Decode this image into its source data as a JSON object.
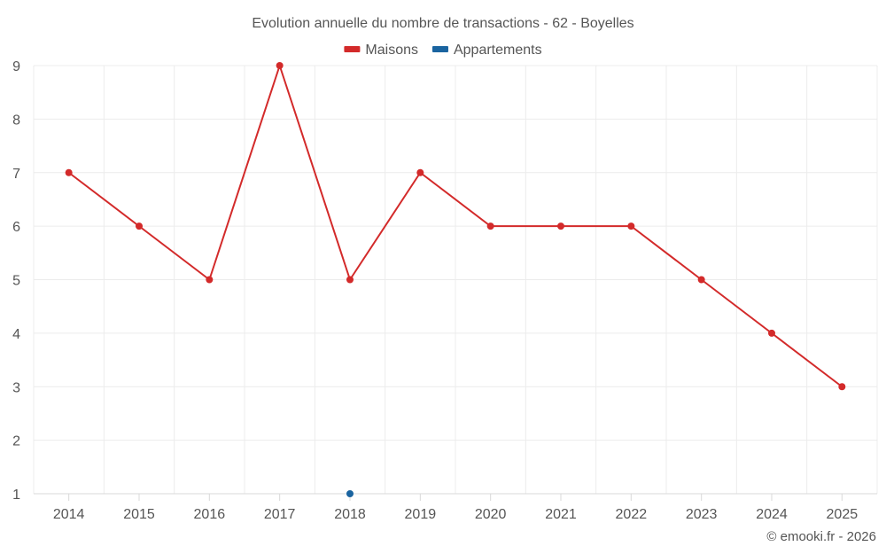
{
  "chart_data": {
    "type": "line",
    "title": "Evolution annuelle du nombre de transactions - 62 - Boyelles",
    "categories": [
      "2014",
      "2015",
      "2016",
      "2017",
      "2018",
      "2019",
      "2020",
      "2021",
      "2022",
      "2023",
      "2024",
      "2025"
    ],
    "series": [
      {
        "name": "Maisons",
        "color": "#d32a2a",
        "values": [
          7,
          6,
          5,
          9,
          5,
          7,
          6,
          6,
          6,
          5,
          4,
          3
        ]
      },
      {
        "name": "Appartements",
        "color": "#1a64a0",
        "values": [
          null,
          null,
          null,
          null,
          1,
          null,
          null,
          null,
          null,
          null,
          null,
          null
        ]
      }
    ],
    "y_ticks": [
      1,
      2,
      3,
      4,
      5,
      6,
      7,
      8,
      9
    ],
    "ylim": [
      1,
      9
    ],
    "xlabel": "",
    "ylabel": "",
    "legend_position": "top-center",
    "grid": true
  },
  "credit": "© emooki.fr - 2026"
}
